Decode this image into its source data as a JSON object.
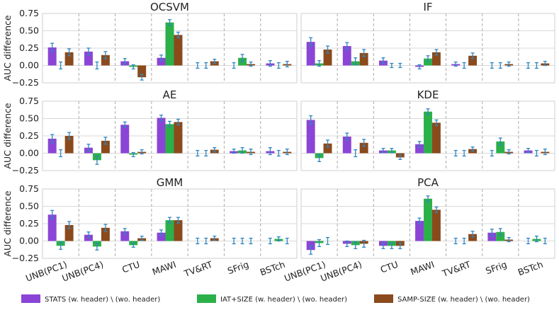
{
  "chart_data": {
    "type": "bar",
    "ylabel": "AUC difference",
    "ylim": [
      -0.25,
      0.75
    ],
    "yticks": [
      -0.25,
      0.0,
      0.25,
      0.5,
      0.75
    ],
    "ytick_labels": [
      "−0.25",
      "0.00",
      "0.25",
      "0.50",
      "0.75"
    ],
    "categories": [
      "UNB(PC1)",
      "UNB(PC4)",
      "CTU",
      "MAWI",
      "TV&RT",
      "SFrig",
      "BSTch"
    ],
    "series_names": [
      "STATS (w. header) \\ (wo. header)",
      "IAT+SIZE (w. header) \\ (wo. header)",
      "SAMP-SIZE (w. header) \\ (wo. header)"
    ],
    "colors": {
      "series": [
        "#8B45D6",
        "#2BB04A",
        "#8B4A1C"
      ],
      "error": "#2E86C1",
      "grid": "#d9d9d9",
      "divider": "#aaaaaa",
      "panel_border": "#cfcfcf"
    },
    "panels": [
      {
        "title": "OCSVM",
        "series": [
          {
            "values": [
              0.26,
              0.2,
              0.06,
              0.11,
              0.0,
              0.0,
              0.03
            ],
            "errors": [
              0.06,
              0.05,
              0.04,
              0.04,
              0.04,
              0.04,
              0.04
            ]
          },
          {
            "values": [
              0.0,
              0.0,
              -0.02,
              0.62,
              0.0,
              0.11,
              0.0
            ],
            "errors": [
              0.05,
              0.05,
              0.03,
              0.04,
              0.04,
              0.05,
              0.04
            ]
          },
          {
            "values": [
              0.19,
              0.15,
              -0.17,
              0.44,
              0.06,
              0.02,
              0.02
            ],
            "errors": [
              0.05,
              0.05,
              0.04,
              0.04,
              0.03,
              0.03,
              0.04
            ]
          }
        ]
      },
      {
        "title": "IF",
        "series": [
          {
            "values": [
              0.34,
              0.28,
              0.07,
              -0.02,
              0.02,
              0.0,
              0.0
            ],
            "errors": [
              0.06,
              0.05,
              0.04,
              0.03,
              0.03,
              0.04,
              0.04
            ]
          },
          {
            "values": [
              0.03,
              0.06,
              0.0,
              0.1,
              0.0,
              0.0,
              0.0
            ],
            "errors": [
              0.04,
              0.05,
              0.03,
              0.04,
              0.04,
              0.04,
              0.04
            ]
          },
          {
            "values": [
              0.23,
              0.18,
              0.0,
              0.19,
              0.14,
              0.02,
              0.03
            ],
            "errors": [
              0.05,
              0.05,
              0.03,
              0.04,
              0.04,
              0.03,
              0.03
            ]
          }
        ]
      },
      {
        "title": "AE",
        "series": [
          {
            "values": [
              0.21,
              0.08,
              0.41,
              0.51,
              0.0,
              0.03,
              0.03
            ],
            "errors": [
              0.06,
              0.05,
              0.04,
              0.04,
              0.04,
              0.03,
              0.05
            ]
          },
          {
            "values": [
              0.0,
              -0.1,
              -0.02,
              0.42,
              0.0,
              0.04,
              0.0
            ],
            "errors": [
              0.05,
              0.06,
              0.03,
              0.04,
              0.04,
              0.04,
              0.04
            ]
          },
          {
            "values": [
              0.25,
              0.18,
              0.02,
              0.45,
              0.05,
              0.02,
              0.02
            ],
            "errors": [
              0.05,
              0.05,
              0.03,
              0.04,
              0.03,
              0.04,
              0.04
            ]
          }
        ]
      },
      {
        "title": "KDE",
        "series": [
          {
            "values": [
              0.48,
              0.24,
              0.04,
              0.13,
              0.0,
              0.0,
              0.04
            ],
            "errors": [
              0.06,
              0.05,
              0.03,
              0.04,
              0.04,
              0.04,
              0.03
            ]
          },
          {
            "values": [
              -0.07,
              0.0,
              0.04,
              0.6,
              0.0,
              0.17,
              0.0
            ],
            "errors": [
              0.05,
              0.05,
              0.03,
              0.04,
              0.04,
              0.05,
              0.04
            ]
          },
          {
            "values": [
              0.14,
              0.15,
              -0.06,
              0.44,
              0.06,
              0.02,
              0.02
            ],
            "errors": [
              0.05,
              0.05,
              0.03,
              0.04,
              0.03,
              0.03,
              0.04
            ]
          }
        ]
      },
      {
        "title": "GMM",
        "series": [
          {
            "values": [
              0.38,
              0.09,
              0.14,
              0.12,
              0.0,
              0.0,
              0.0
            ],
            "errors": [
              0.06,
              0.04,
              0.04,
              0.04,
              0.04,
              0.04,
              0.04
            ]
          },
          {
            "values": [
              -0.07,
              -0.08,
              -0.06,
              0.3,
              0.0,
              0.0,
              0.03
            ],
            "errors": [
              0.05,
              0.05,
              0.03,
              0.04,
              0.04,
              0.04,
              0.03
            ]
          },
          {
            "values": [
              0.23,
              0.19,
              0.04,
              0.3,
              0.04,
              0.0,
              0.0
            ],
            "errors": [
              0.05,
              0.05,
              0.03,
              0.04,
              0.03,
              0.04,
              0.04
            ]
          }
        ]
      },
      {
        "title": "PCA",
        "series": [
          {
            "values": [
              -0.13,
              -0.04,
              -0.07,
              0.29,
              0.0,
              0.12,
              0.0
            ],
            "errors": [
              0.06,
              0.04,
              0.04,
              0.04,
              0.04,
              0.05,
              0.04
            ]
          },
          {
            "values": [
              -0.03,
              -0.06,
              -0.07,
              0.61,
              0.0,
              0.13,
              0.03
            ],
            "errors": [
              0.05,
              0.05,
              0.04,
              0.04,
              0.04,
              0.05,
              0.04
            ]
          },
          {
            "values": [
              0.0,
              -0.04,
              -0.07,
              0.45,
              0.1,
              0.02,
              0.0
            ],
            "errors": [
              0.05,
              0.05,
              0.04,
              0.04,
              0.04,
              0.03,
              0.04
            ]
          }
        ]
      }
    ]
  }
}
